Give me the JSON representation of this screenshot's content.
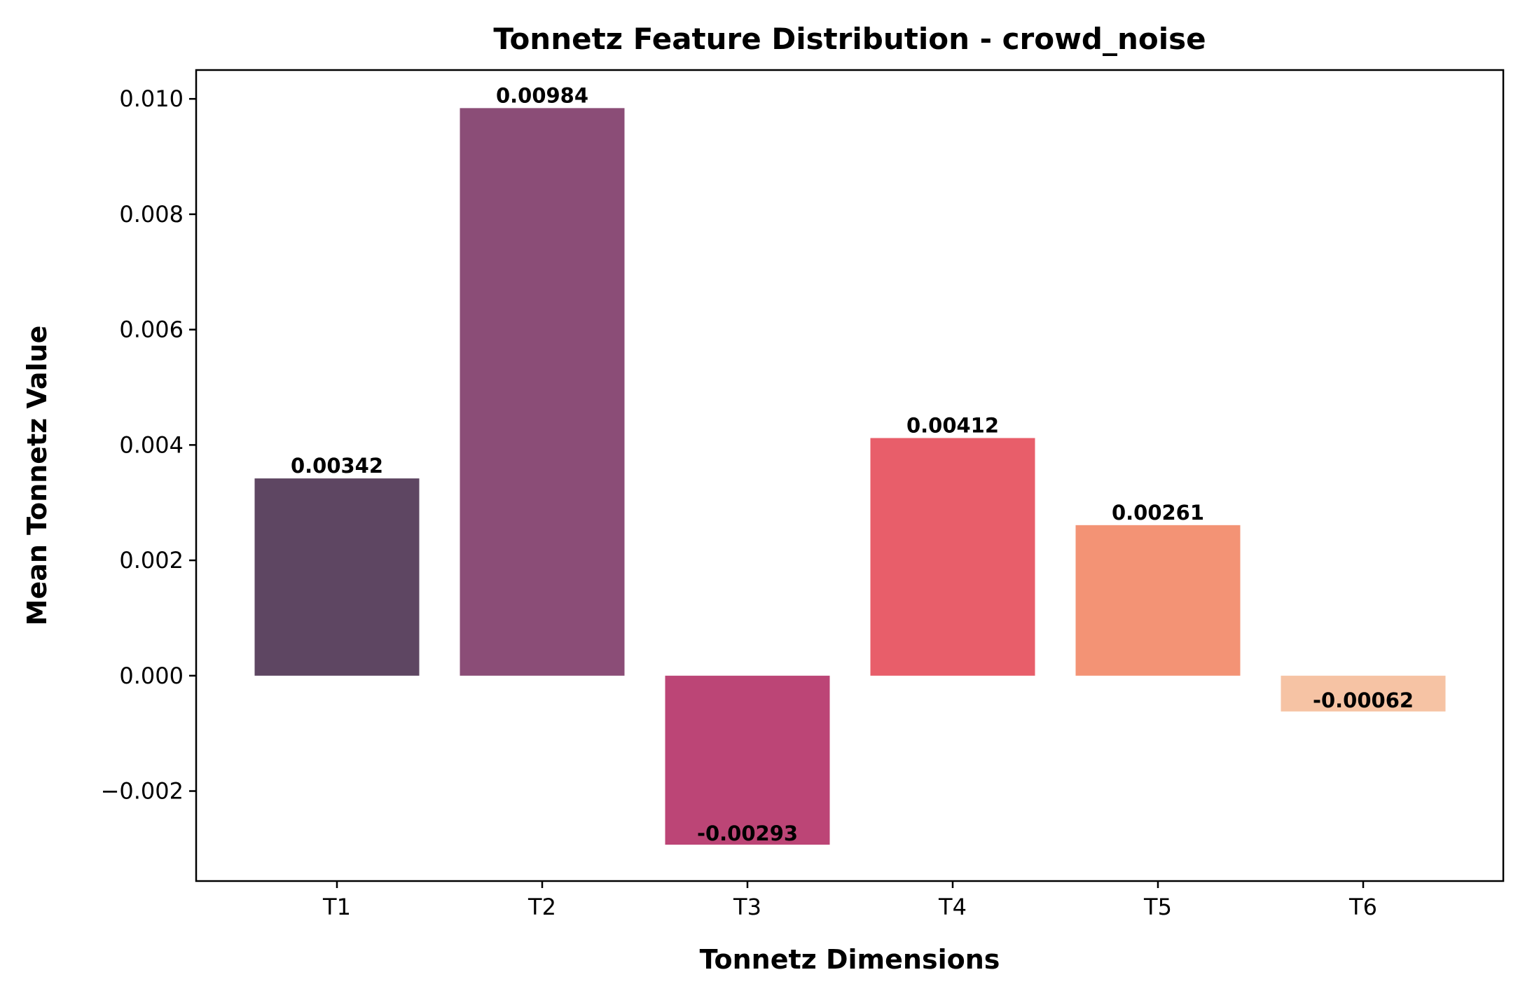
{
  "chart_data": {
    "type": "bar",
    "title": "Tonnetz Feature Distribution - crowd_noise",
    "xlabel": "Tonnetz Dimensions",
    "ylabel": "Mean Tonnetz Value",
    "categories": [
      "T1",
      "T2",
      "T3",
      "T4",
      "T5",
      "T6"
    ],
    "values": [
      0.00342,
      0.00984,
      -0.00293,
      0.00412,
      0.00261,
      -0.00062
    ],
    "data_labels": [
      "0.00342",
      "0.00984",
      "-0.00293",
      "0.00412",
      "0.00261",
      "-0.00062"
    ],
    "colors": [
      "#5e4662",
      "#8b4d77",
      "#bc4576",
      "#e85e6a",
      "#f39375",
      "#f6c3a4"
    ],
    "ylim": [
      -0.00356,
      0.0105
    ],
    "yticks": [
      -0.002,
      0.0,
      0.002,
      0.004,
      0.006,
      0.008,
      0.01
    ],
    "ytick_labels": [
      "−0.002",
      "0.000",
      "0.002",
      "0.004",
      "0.006",
      "0.008",
      "0.010"
    ],
    "grid": false,
    "legend": "none"
  }
}
